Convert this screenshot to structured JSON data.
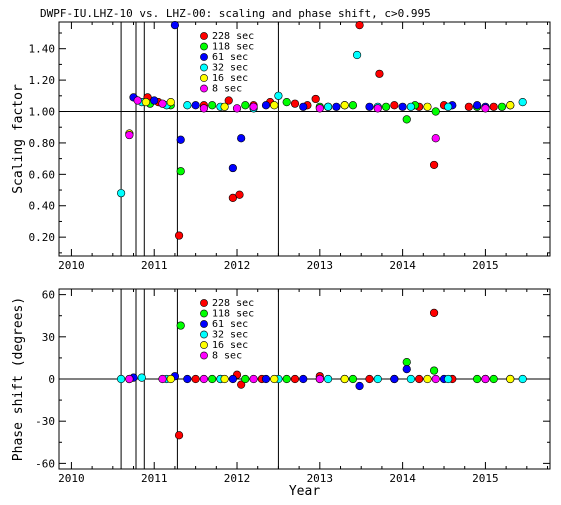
{
  "title": "DWPF-IU.LHZ-10 vs. LHZ-00: scaling and phase shift, c>0.995",
  "chart_data": [
    {
      "id": "scaling",
      "type": "scatter",
      "ylabel": "Scaling factor",
      "xlabel": "",
      "xlim": [
        2009.85,
        2015.78
      ],
      "ylim": [
        0.08,
        1.57
      ],
      "x_ticks": [
        2010,
        2011,
        2012,
        2013,
        2014,
        2015
      ],
      "y_ticks": [
        0.2,
        0.4,
        0.6,
        0.8,
        1.0,
        1.2,
        1.4
      ],
      "y_tick_labels": [
        "0.20",
        "0.40",
        "0.60",
        "0.80",
        "1.00",
        "1.20",
        "1.40"
      ],
      "reference_line": 1.0,
      "event_lines": [
        2010.6,
        2010.78,
        2010.88,
        2011.28,
        2012.5
      ],
      "legend_position": "top-center",
      "series": [
        {
          "name": "228 sec",
          "color": "#ff0000",
          "points": [
            [
              2010.92,
              1.09
            ],
            [
              2011.05,
              1.06
            ],
            [
              2011.3,
              0.21
            ],
            [
              2011.6,
              1.04
            ],
            [
              2011.9,
              1.07
            ],
            [
              2011.95,
              0.45
            ],
            [
              2012.03,
              0.47
            ],
            [
              2012.2,
              1.04
            ],
            [
              2012.4,
              1.06
            ],
            [
              2012.7,
              1.05
            ],
            [
              2012.85,
              1.04
            ],
            [
              2012.95,
              1.08
            ],
            [
              2013.1,
              1.03
            ],
            [
              2013.3,
              1.04
            ],
            [
              2013.48,
              1.55
            ],
            [
              2013.72,
              1.24
            ],
            [
              2013.9,
              1.04
            ],
            [
              2014.2,
              1.03
            ],
            [
              2014.38,
              0.66
            ],
            [
              2014.5,
              1.04
            ],
            [
              2014.8,
              1.03
            ],
            [
              2015.1,
              1.03
            ],
            [
              2015.3,
              1.04
            ]
          ]
        },
        {
          "name": "118 sec",
          "color": "#00ff00",
          "points": [
            [
              2010.95,
              1.05
            ],
            [
              2011.2,
              1.04
            ],
            [
              2011.32,
              0.62
            ],
            [
              2011.7,
              1.04
            ],
            [
              2012.1,
              1.04
            ],
            [
              2012.6,
              1.06
            ],
            [
              2013.0,
              1.03
            ],
            [
              2013.4,
              1.04
            ],
            [
              2013.8,
              1.03
            ],
            [
              2014.05,
              0.95
            ],
            [
              2014.15,
              1.04
            ],
            [
              2014.4,
              1.0
            ],
            [
              2014.9,
              1.03
            ],
            [
              2015.2,
              1.03
            ]
          ]
        },
        {
          "name": "61 sec",
          "color": "#0000ff",
          "points": [
            [
              2010.75,
              1.09
            ],
            [
              2011.0,
              1.07
            ],
            [
              2011.25,
              1.55
            ],
            [
              2011.32,
              0.82
            ],
            [
              2011.5,
              1.04
            ],
            [
              2011.95,
              0.64
            ],
            [
              2012.05,
              0.83
            ],
            [
              2012.35,
              1.04
            ],
            [
              2012.8,
              1.03
            ],
            [
              2013.2,
              1.03
            ],
            [
              2013.6,
              1.03
            ],
            [
              2014.0,
              1.03
            ],
            [
              2014.6,
              1.04
            ],
            [
              2014.9,
              1.04
            ],
            [
              2015.0,
              1.03
            ]
          ]
        },
        {
          "name": "32 sec",
          "color": "#00ffff",
          "points": [
            [
              2010.6,
              0.48
            ],
            [
              2010.85,
              1.06
            ],
            [
              2011.15,
              1.04
            ],
            [
              2011.4,
              1.04
            ],
            [
              2011.8,
              1.03
            ],
            [
              2012.2,
              1.02
            ],
            [
              2012.5,
              1.1
            ],
            [
              2013.1,
              1.03
            ],
            [
              2013.45,
              1.36
            ],
            [
              2013.7,
              1.03
            ],
            [
              2014.1,
              1.03
            ],
            [
              2014.55,
              1.03
            ],
            [
              2015.45,
              1.06
            ]
          ]
        },
        {
          "name": "16 sec",
          "color": "#ffff00",
          "points": [
            [
              2010.7,
              0.86
            ],
            [
              2010.9,
              1.06
            ],
            [
              2011.2,
              1.06
            ],
            [
              2011.85,
              1.03
            ],
            [
              2012.45,
              1.04
            ],
            [
              2013.3,
              1.04
            ],
            [
              2014.3,
              1.03
            ],
            [
              2015.3,
              1.04
            ]
          ]
        },
        {
          "name": "8 sec",
          "color": "#ff00ff",
          "points": [
            [
              2010.7,
              0.85
            ],
            [
              2010.8,
              1.07
            ],
            [
              2011.1,
              1.05
            ],
            [
              2011.6,
              1.02
            ],
            [
              2012.0,
              1.02
            ],
            [
              2012.2,
              1.03
            ],
            [
              2013.0,
              1.02
            ],
            [
              2013.7,
              1.02
            ],
            [
              2014.4,
              0.83
            ],
            [
              2015.0,
              1.02
            ]
          ]
        }
      ]
    },
    {
      "id": "phase",
      "type": "scatter",
      "ylabel": "Phase shift (degrees)",
      "xlabel": "Year",
      "xlim": [
        2009.85,
        2015.78
      ],
      "ylim": [
        -64,
        64
      ],
      "x_ticks": [
        2010,
        2011,
        2012,
        2013,
        2014,
        2015
      ],
      "y_ticks": [
        -60,
        -30,
        0,
        30,
        60
      ],
      "y_tick_labels": [
        "-60",
        "-30",
        "0",
        "30",
        "60"
      ],
      "reference_line": 0,
      "event_lines": [
        2010.6,
        2010.78,
        2010.88,
        2011.28,
        2012.5
      ],
      "legend_position": "top-center",
      "series": [
        {
          "name": "228 sec",
          "color": "#ff0000",
          "points": [
            [
              2011.3,
              -40
            ],
            [
              2011.5,
              0
            ],
            [
              2011.8,
              0
            ],
            [
              2012.0,
              3
            ],
            [
              2012.05,
              -4
            ],
            [
              2012.3,
              0
            ],
            [
              2012.7,
              0
            ],
            [
              2013.0,
              2
            ],
            [
              2013.3,
              0
            ],
            [
              2013.6,
              0
            ],
            [
              2013.9,
              0
            ],
            [
              2014.2,
              0
            ],
            [
              2014.38,
              47
            ],
            [
              2014.6,
              0
            ],
            [
              2015.0,
              0
            ],
            [
              2015.3,
              0
            ]
          ]
        },
        {
          "name": "118 sec",
          "color": "#00ff00",
          "points": [
            [
              2011.32,
              38
            ],
            [
              2011.7,
              0
            ],
            [
              2012.1,
              0
            ],
            [
              2012.6,
              0
            ],
            [
              2013.0,
              0
            ],
            [
              2013.4,
              0
            ],
            [
              2014.05,
              12
            ],
            [
              2014.38,
              6
            ],
            [
              2014.9,
              0
            ],
            [
              2015.1,
              0
            ]
          ]
        },
        {
          "name": "61 sec",
          "color": "#0000ff",
          "points": [
            [
              2010.75,
              1
            ],
            [
              2011.25,
              2
            ],
            [
              2011.4,
              0
            ],
            [
              2011.95,
              0
            ],
            [
              2012.35,
              0
            ],
            [
              2012.8,
              0
            ],
            [
              2013.48,
              -5
            ],
            [
              2013.9,
              0
            ],
            [
              2014.05,
              7
            ],
            [
              2014.5,
              0
            ]
          ]
        },
        {
          "name": "32 sec",
          "color": "#00ffff",
          "points": [
            [
              2010.6,
              0
            ],
            [
              2010.85,
              1
            ],
            [
              2011.15,
              0
            ],
            [
              2011.8,
              0
            ],
            [
              2012.5,
              0
            ],
            [
              2013.1,
              0
            ],
            [
              2013.7,
              0
            ],
            [
              2014.1,
              0
            ],
            [
              2014.55,
              0
            ],
            [
              2015.45,
              0
            ]
          ]
        },
        {
          "name": "16 sec",
          "color": "#ffff00",
          "points": [
            [
              2010.7,
              0
            ],
            [
              2011.2,
              0
            ],
            [
              2011.85,
              0
            ],
            [
              2012.45,
              0
            ],
            [
              2013.3,
              0
            ],
            [
              2014.3,
              0
            ],
            [
              2015.3,
              0
            ]
          ]
        },
        {
          "name": "8 sec",
          "color": "#ff00ff",
          "points": [
            [
              2010.7,
              0
            ],
            [
              2011.1,
              0
            ],
            [
              2011.6,
              0
            ],
            [
              2012.2,
              0
            ],
            [
              2013.0,
              0
            ],
            [
              2014.4,
              0
            ],
            [
              2015.0,
              0
            ]
          ]
        }
      ]
    }
  ]
}
